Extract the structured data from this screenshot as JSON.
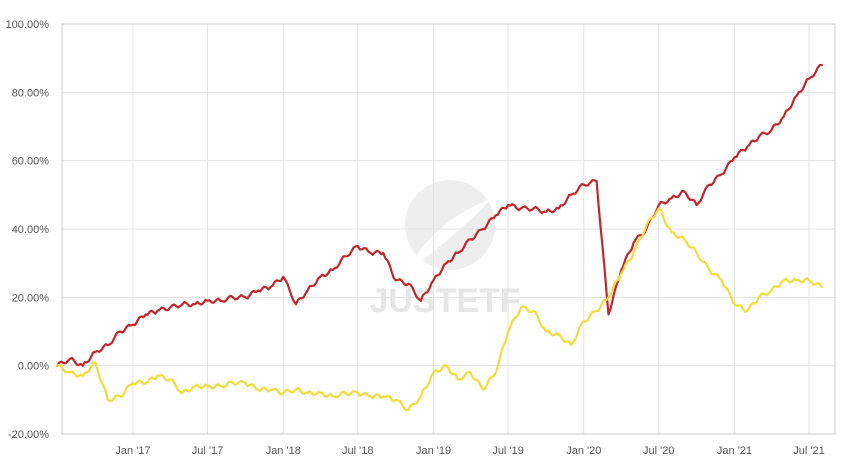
{
  "chart_data": {
    "type": "line",
    "title": "",
    "xlabel": "",
    "ylabel": "",
    "ylim": [
      -20,
      100
    ],
    "yticks": [
      "-20.00%",
      "0.00%",
      "20.00%",
      "40.00%",
      "60.00%",
      "80.00%",
      "100.00%"
    ],
    "xticks": [
      "Jan '17",
      "Jul '17",
      "Jan '18",
      "Jul '18",
      "Jan '19",
      "Jul '19",
      "Jan '20",
      "Jul '20",
      "Jan '21",
      "Jul '21"
    ],
    "x_dates": [
      "2016-07-01",
      "2016-08-01",
      "2016-09-01",
      "2016-10-01",
      "2016-11-01",
      "2016-12-01",
      "2017-01-01",
      "2017-02-01",
      "2017-03-01",
      "2017-04-01",
      "2017-05-01",
      "2017-06-01",
      "2017-07-01",
      "2017-08-01",
      "2017-09-01",
      "2017-10-01",
      "2017-11-01",
      "2017-12-01",
      "2018-01-01",
      "2018-02-01",
      "2018-03-01",
      "2018-04-01",
      "2018-05-01",
      "2018-06-01",
      "2018-07-01",
      "2018-08-01",
      "2018-09-01",
      "2018-10-01",
      "2018-11-01",
      "2018-12-01",
      "2019-01-01",
      "2019-02-01",
      "2019-03-01",
      "2019-04-01",
      "2019-05-01",
      "2019-06-01",
      "2019-07-01",
      "2019-08-01",
      "2019-09-01",
      "2019-10-01",
      "2019-11-01",
      "2019-12-01",
      "2020-01-01",
      "2020-02-01",
      "2020-03-01",
      "2020-04-01",
      "2020-05-01",
      "2020-06-01",
      "2020-07-01",
      "2020-08-01",
      "2020-09-01",
      "2020-10-01",
      "2020-11-01",
      "2020-12-01",
      "2021-01-01",
      "2021-02-01",
      "2021-03-01",
      "2021-04-01",
      "2021-05-01",
      "2021-06-01",
      "2021-07-01",
      "2021-08-01"
    ],
    "series": [
      {
        "color": "#c0272d",
        "values": [
          0,
          2,
          0,
          4,
          6,
          10,
          12,
          15,
          16,
          17,
          18,
          18,
          19,
          19,
          20,
          20,
          22,
          23,
          26,
          18,
          22,
          26,
          28,
          32,
          35,
          33,
          33,
          25,
          24,
          19,
          25,
          30,
          33,
          37,
          40,
          44,
          47,
          46,
          46,
          45,
          46,
          50,
          53,
          54,
          15,
          28,
          36,
          40,
          47,
          49,
          51,
          47,
          53,
          56,
          61,
          64,
          67,
          69,
          73,
          79,
          84,
          88
        ]
      },
      {
        "color": "#f2dc3b",
        "values": [
          0,
          -2,
          -3,
          1,
          -10,
          -9,
          -5,
          -5,
          -3,
          -4,
          -8,
          -6,
          -6,
          -6,
          -5,
          -5,
          -7,
          -7,
          -8,
          -7,
          -8,
          -8,
          -9,
          -8,
          -8,
          -9,
          -9,
          -10,
          -13,
          -9,
          -2,
          0,
          -4,
          -2,
          -7,
          -2,
          10,
          17,
          16,
          10,
          9,
          6,
          13,
          16,
          20,
          27,
          33,
          41,
          46,
          39,
          37,
          33,
          28,
          25,
          18,
          16,
          20,
          22,
          25,
          25,
          25,
          23
        ]
      }
    ],
    "grid": true,
    "legend": "none"
  },
  "watermark": {
    "text": "JUSTETF"
  }
}
